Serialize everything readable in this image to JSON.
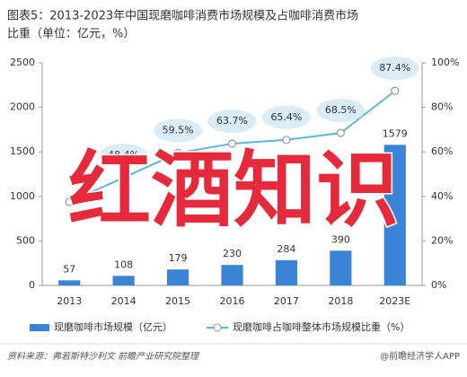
{
  "chart_data": {
    "type": "bar-line",
    "title_lines": [
      "图表5：2013-2023年中国现磨咖啡消费市场规模及占咖啡消费市场",
      "比重（单位：亿元，%）"
    ],
    "categories": [
      "2013",
      "2014",
      "2015",
      "2016",
      "2017",
      "2018",
      "2023E"
    ],
    "series": [
      {
        "name": "现磨咖啡市场规模（亿元）",
        "type": "bar",
        "color": "#3a84d8",
        "values": [
          57,
          108,
          179,
          230,
          284,
          390,
          1579
        ]
      },
      {
        "name": "现磨咖啡占咖啡整体市场规模比重（%）",
        "type": "line",
        "axis": "y2",
        "color": "#5ab4e6",
        "values": [
          37.5,
          48.4,
          59.5,
          63.7,
          65.4,
          68.5,
          87.4
        ],
        "value_labels": [
          null,
          "48.4%",
          "59.5%",
          "63.7%",
          "65.4%",
          "68.5%",
          "87.4%"
        ]
      }
    ],
    "ylim": [
      0,
      2500
    ],
    "yticks": [
      0,
      500,
      1000,
      1500,
      2000,
      2500
    ],
    "y2lim": [
      0,
      100
    ],
    "y2ticks": [
      {
        "value": 0,
        "label": "0%"
      },
      {
        "value": 20,
        "label": "20%"
      },
      {
        "value": 40,
        "label": "40%"
      },
      {
        "value": 60,
        "label": "60%"
      },
      {
        "value": 80,
        "label": "80%"
      },
      {
        "value": 100,
        "label": "100%"
      }
    ],
    "annotation": "红酒知识",
    "source": "资料来源：弗若斯特沙利文 前瞻产业研究院整理",
    "credit": "@前瞻经济学人APP"
  }
}
